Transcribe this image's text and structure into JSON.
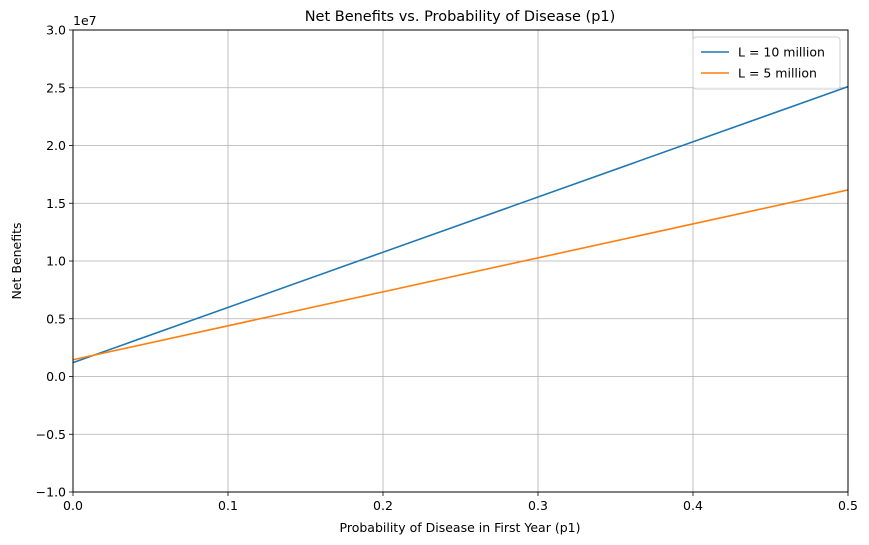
{
  "chart_data": {
    "type": "line",
    "title": "Net Benefits vs. Probability of Disease (p1)",
    "xlabel": "Probability of Disease in First Year (p1)",
    "ylabel": "Net Benefits",
    "y_scale_label": "1e7",
    "xlim": [
      0,
      0.5
    ],
    "ylim": [
      -10000000,
      30000000
    ],
    "x_ticks": [
      0,
      0.1,
      0.2,
      0.3,
      0.4,
      0.5
    ],
    "x_tick_labels": [
      "0.0",
      "0.1",
      "0.2",
      "0.3",
      "0.4",
      "0.5"
    ],
    "y_ticks": [
      -10000000,
      -5000000,
      0,
      5000000,
      10000000,
      15000000,
      20000000,
      25000000,
      30000000
    ],
    "y_tick_labels": [
      "−1.0",
      "−0.5",
      "0.0",
      "0.5",
      "1.0",
      "1.5",
      "2.0",
      "2.5",
      "3.0"
    ],
    "grid": true,
    "legend_position": "top-right",
    "series": [
      {
        "name": "L = 10 million",
        "color": "#1f77b4",
        "x": [
          0,
          0.5
        ],
        "y": [
          1200000,
          25100000
        ]
      },
      {
        "name": "L = 5 million",
        "color": "#ff7f0e",
        "x": [
          0,
          0.5
        ],
        "y": [
          1450000,
          16150000
        ]
      }
    ]
  }
}
